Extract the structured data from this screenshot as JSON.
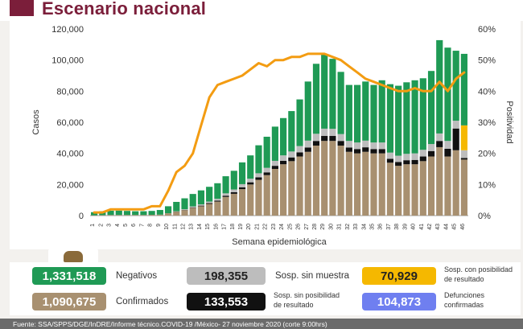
{
  "page": {
    "title": "Escenario nacional"
  },
  "chart_data": {
    "type": "bar",
    "stacked": true,
    "categories": [
      "1",
      "2",
      "3",
      "4",
      "5",
      "6",
      "7",
      "8",
      "9",
      "10",
      "11",
      "12",
      "13",
      "14",
      "15",
      "16",
      "17",
      "18",
      "19",
      "20",
      "21",
      "22",
      "23",
      "24",
      "25",
      "26",
      "27",
      "28",
      "29",
      "30",
      "31",
      "32",
      "33",
      "34",
      "35",
      "36",
      "37",
      "38",
      "39",
      "40",
      "41",
      "42",
      "43",
      "44",
      "45",
      "46"
    ],
    "xlabel": "Semana epidemiológica",
    "ylabel": "Casos",
    "y2label": "Positividad",
    "ylim": [
      0,
      120000
    ],
    "y2lim": [
      0,
      60
    ],
    "yticks": [
      "0",
      "20,000",
      "40,000",
      "60,000",
      "80,000",
      "100,000",
      "120,000"
    ],
    "y2ticks": [
      "0%",
      "10%",
      "20%",
      "30%",
      "40%",
      "50%",
      "60%"
    ],
    "grid": false,
    "series": [
      {
        "key": "confirmados",
        "color": "#a89070",
        "values": [
          200,
          300,
          400,
          400,
          400,
          400,
          400,
          500,
          600,
          1500,
          2500,
          3500,
          5000,
          6000,
          7500,
          9000,
          12000,
          14000,
          17000,
          20000,
          23000,
          26000,
          30000,
          33000,
          35000,
          38000,
          41000,
          45000,
          48000,
          48000,
          45000,
          41000,
          40000,
          41000,
          40000,
          40000,
          34000,
          32000,
          33000,
          33000,
          35000,
          38000,
          44000,
          38000,
          42000,
          36000
        ]
      },
      {
        "key": "sosp_sin_posibilidad",
        "color": "#111111",
        "values": [
          0,
          0,
          0,
          0,
          0,
          0,
          0,
          0,
          0,
          0,
          100,
          200,
          300,
          400,
          500,
          600,
          800,
          1000,
          1200,
          1400,
          1600,
          1800,
          2000,
          2200,
          2400,
          2600,
          2800,
          3000,
          3200,
          3200,
          3000,
          2800,
          2800,
          2900,
          2800,
          2800,
          2500,
          2500,
          2600,
          2800,
          3000,
          3500,
          4000,
          5000,
          14000,
          1000
        ]
      },
      {
        "key": "sosp_sin_muestra",
        "color": "#bdbdbd",
        "values": [
          0,
          0,
          0,
          0,
          0,
          0,
          0,
          0,
          0,
          0,
          200,
          400,
          600,
          800,
          1000,
          1200,
          1500,
          1800,
          2000,
          2300,
          2600,
          2900,
          3200,
          3500,
          3800,
          4100,
          4400,
          4600,
          4700,
          4600,
          4400,
          4200,
          4200,
          4300,
          4200,
          4200,
          4000,
          4000,
          4100,
          4200,
          4300,
          4500,
          4800,
          5000,
          5000,
          5000
        ]
      },
      {
        "key": "sosp_con_posibilidad",
        "color": "#f5b800",
        "values": [
          0,
          0,
          0,
          0,
          0,
          0,
          0,
          0,
          0,
          0,
          0,
          0,
          0,
          0,
          0,
          0,
          0,
          0,
          0,
          0,
          0,
          0,
          0,
          0,
          0,
          0,
          0,
          0,
          0,
          0,
          0,
          0,
          0,
          0,
          0,
          0,
          0,
          0,
          0,
          0,
          0,
          0,
          0,
          0,
          0,
          16000
        ]
      },
      {
        "key": "negativos",
        "color": "#1f9a55",
        "values": [
          2000,
          2500,
          2700,
          2800,
          2600,
          2400,
          2400,
          2500,
          3000,
          4500,
          6000,
          7000,
          8000,
          9000,
          9500,
          10000,
          11000,
          12000,
          14000,
          15000,
          18000,
          20000,
          22000,
          24000,
          26000,
          30000,
          38000,
          45000,
          48000,
          45000,
          40000,
          36000,
          37000,
          38000,
          37000,
          40000,
          44000,
          45000,
          46000,
          47000,
          46000,
          47000,
          60000,
          60000,
          45000,
          46000
        ]
      }
    ],
    "positividad": [
      1,
      1,
      2,
      2,
      2,
      2,
      2,
      3,
      3,
      8,
      14,
      16,
      20,
      29,
      38,
      42,
      43,
      44,
      45,
      47,
      49,
      48,
      50,
      50,
      51,
      51,
      52,
      52,
      52,
      51,
      50,
      48,
      46,
      44,
      43,
      42,
      41,
      40,
      40,
      41,
      40,
      40,
      43,
      40,
      44,
      46
    ]
  },
  "legend": {
    "negativos": {
      "value": "1,331,518",
      "label": "Negativos",
      "color": "#1f9a55"
    },
    "sosp_sin_muestra": {
      "value": "198,355",
      "label": "Sosp. sin muestra",
      "color": "#bdbdbd"
    },
    "sosp_con_posibilidad": {
      "value": "70,929",
      "label_line1": "Sosp. con posibilidad",
      "label_line2": "de resultado",
      "color": "#f5b800"
    },
    "confirmados": {
      "value": "1,090,675",
      "label": "Confirmados",
      "color": "#a89070"
    },
    "sosp_sin_posibilidad": {
      "value": "133,553",
      "label_line1": "Sosp. sin posibilidad",
      "label_line2": "de resultado",
      "color": "#111111"
    },
    "defunciones": {
      "value": "104,873",
      "label_line1": "Defunciones",
      "label_line2": "confirmadas",
      "color": "#6f7ff0"
    }
  },
  "source": "Fuente: SSA/SPPS/DGE/InDRE/Informe técnico.COVID-19 /México- 27 noviembre 2020 (corte 9:00hrs)"
}
